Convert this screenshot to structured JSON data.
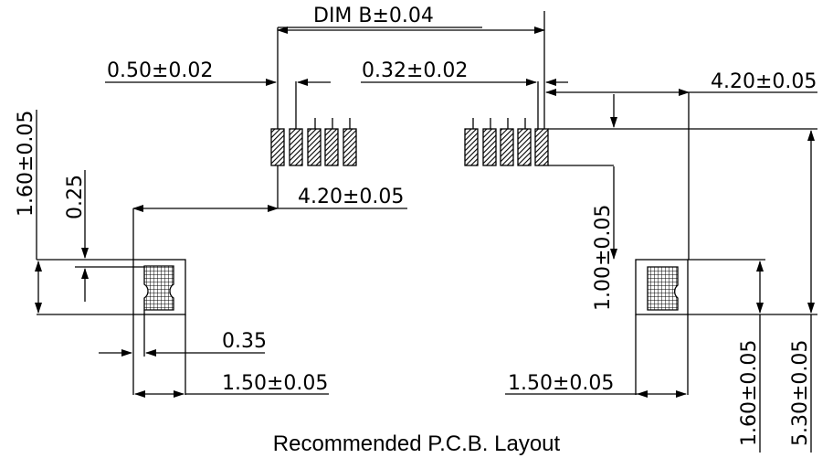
{
  "drawing": {
    "caption": "Recommended P.C.B. Layout",
    "dims": {
      "dim_b": "DIM  B±0.04",
      "pin_width": "0.50±0.02",
      "pin_gap": "0.32±0.02",
      "offset_top_right": "4.20±0.05",
      "offset_mid": "4.20±0.05",
      "pad_height_left": "1.60±0.05",
      "notch": "0.25",
      "lip": "0.35",
      "pad_width_left": "1.50±0.05",
      "pad_width_right": "1.50±0.05",
      "pad_to_pins": "1.00±0.05",
      "pad_height_right": "1.60±0.05",
      "total_height": "5.30±0.05"
    }
  }
}
